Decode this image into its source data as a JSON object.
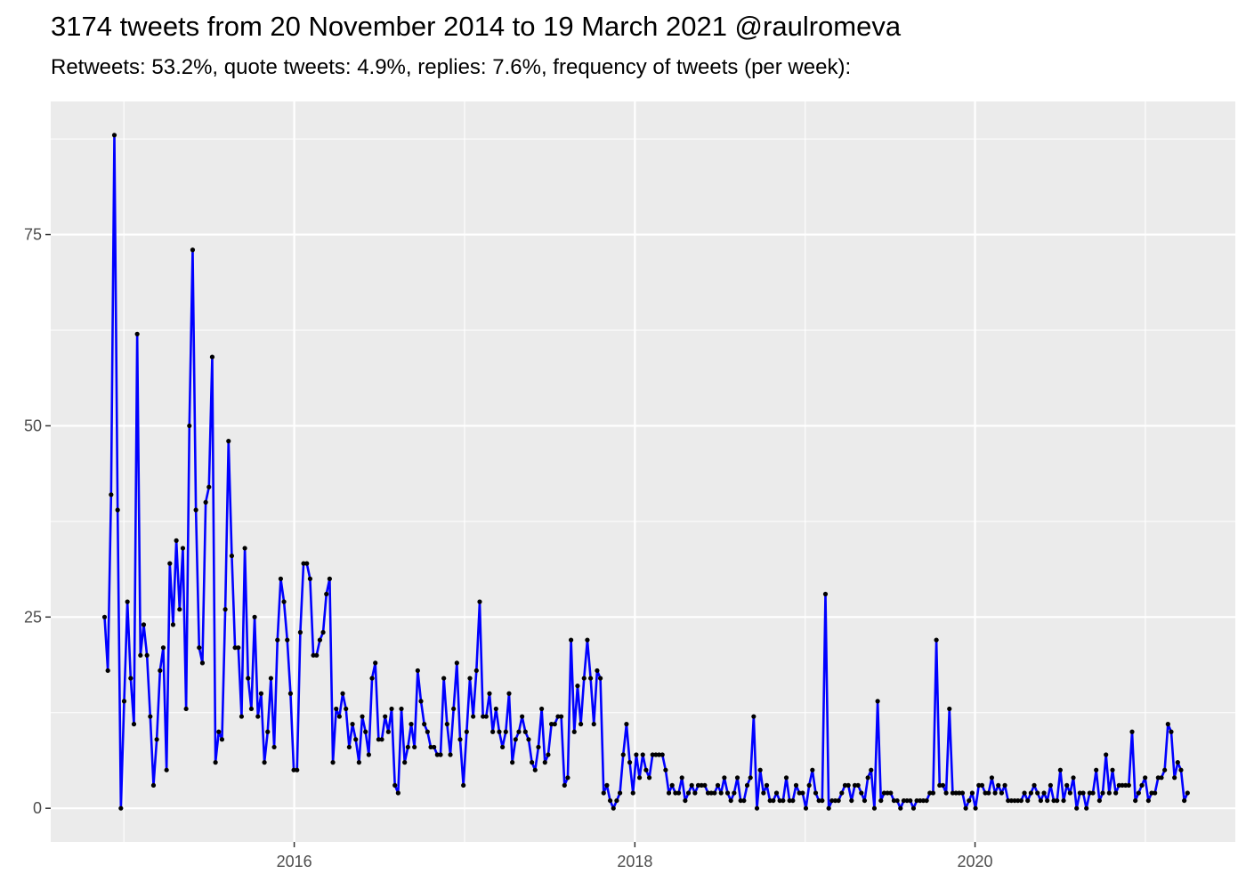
{
  "chart_data": {
    "type": "line",
    "title": "3174 tweets from 20 November 2014 to 19 March 2021 @raulromeva",
    "subtitle": "Retweets: 53.2%, quote tweets: 4.9%, replies: 7.6%, frequency of tweets (per week):",
    "xlabel": "",
    "ylabel": "",
    "grid": true,
    "x_start": "2014-11-20",
    "x_range": [
      "2014-11-20",
      "2021-03-19"
    ],
    "x_ticks": [
      {
        "value": "2016-01-01",
        "label": "2016"
      },
      {
        "value": "2018-01-01",
        "label": "2018"
      },
      {
        "value": "2020-01-01",
        "label": "2020"
      }
    ],
    "y_ticks": [
      0,
      25,
      50,
      75
    ],
    "ylim": [
      -4.4,
      92.4
    ],
    "line_color": "#0000ff",
    "point_color": "#000000",
    "values": [
      25,
      18,
      41,
      88,
      39,
      0,
      14,
      27,
      17,
      11,
      62,
      20,
      24,
      20,
      12,
      3,
      9,
      18,
      21,
      5,
      32,
      24,
      35,
      26,
      34,
      13,
      50,
      73,
      39,
      21,
      19,
      40,
      42,
      59,
      6,
      10,
      9,
      26,
      48,
      33,
      21,
      21,
      12,
      34,
      17,
      13,
      25,
      12,
      15,
      6,
      10,
      17,
      8,
      22,
      30,
      27,
      22,
      15,
      5,
      5,
      23,
      32,
      32,
      30,
      20,
      20,
      22,
      23,
      28,
      30,
      6,
      13,
      12,
      15,
      13,
      8,
      11,
      9,
      6,
      12,
      10,
      7,
      17,
      19,
      9,
      9,
      12,
      10,
      13,
      3,
      2,
      13,
      6,
      8,
      11,
      8,
      18,
      14,
      11,
      10,
      8,
      8,
      7,
      7,
      17,
      11,
      7,
      13,
      19,
      9,
      3,
      10,
      17,
      12,
      18,
      27,
      12,
      12,
      15,
      10,
      13,
      10,
      8,
      10,
      15,
      6,
      9,
      10,
      12,
      10,
      9,
      6,
      5,
      8,
      13,
      6,
      7,
      11,
      11,
      12,
      12,
      3,
      4,
      22,
      10,
      16,
      11,
      17,
      22,
      17,
      11,
      18,
      17,
      2,
      3,
      1,
      0,
      1,
      2,
      7,
      11,
      6,
      2,
      7,
      4,
      7,
      5,
      4,
      7,
      7,
      7,
      7,
      5,
      2,
      3,
      2,
      2,
      4,
      1,
      2,
      3,
      2,
      3,
      3,
      3,
      2,
      2,
      2,
      3,
      2,
      4,
      2,
      1,
      2,
      4,
      1,
      1,
      3,
      4,
      12,
      0,
      5,
      2,
      3,
      1,
      1,
      2,
      1,
      1,
      4,
      1,
      1,
      3,
      2,
      2,
      0,
      3,
      5,
      2,
      1,
      1,
      28,
      0,
      1,
      1,
      1,
      2,
      3,
      3,
      1,
      3,
      3,
      2,
      1,
      4,
      5,
      0,
      14,
      1,
      2,
      2,
      2,
      1,
      1,
      0,
      1,
      1,
      1,
      0,
      1,
      1,
      1,
      1,
      2,
      2,
      22,
      3,
      3,
      2,
      13,
      2,
      2,
      2,
      2,
      0,
      1,
      2,
      0,
      3,
      3,
      2,
      2,
      4,
      2,
      3,
      2,
      3,
      1,
      1,
      1,
      1,
      1,
      2,
      1,
      2,
      3,
      2,
      1,
      2,
      1,
      3,
      1,
      1,
      5,
      1,
      3,
      2,
      4,
      0,
      2,
      2,
      0,
      2,
      2,
      5,
      1,
      2,
      7,
      2,
      5,
      2,
      3,
      3,
      3,
      3,
      10,
      1,
      2,
      3,
      4,
      1,
      2,
      2,
      4,
      4,
      5,
      11,
      10,
      4,
      6,
      5,
      1,
      2
    ]
  }
}
